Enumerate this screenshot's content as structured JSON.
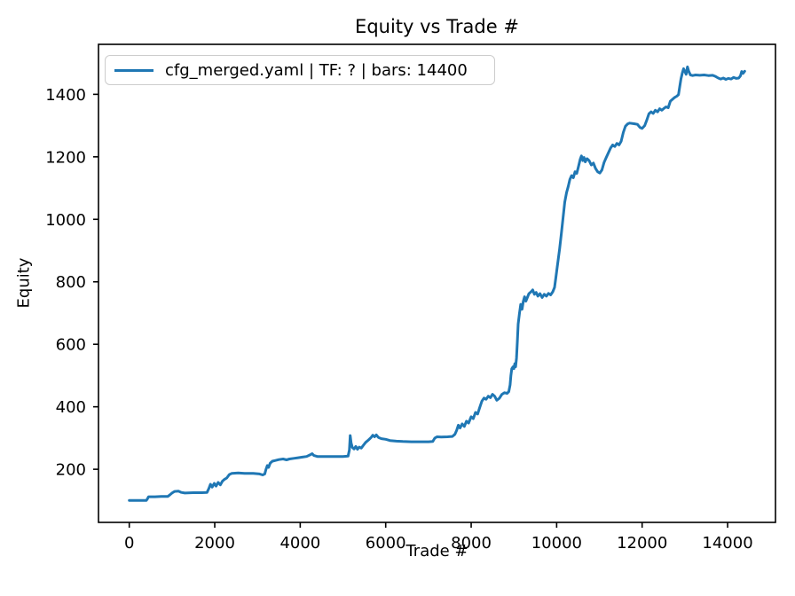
{
  "colors": {
    "line": "#1f77b4",
    "axis": "#000000",
    "legend_border": "#cccccc",
    "background": "#ffffff"
  },
  "chart_data": {
    "type": "line",
    "title": "Equity vs Trade #",
    "xlabel": "Trade #",
    "ylabel": "Equity",
    "grid": false,
    "xlim": [
      -720,
      15120
    ],
    "ylim": [
      30,
      1560
    ],
    "xticks": [
      0,
      2000,
      4000,
      6000,
      8000,
      10000,
      12000,
      14000
    ],
    "yticks": [
      200,
      400,
      600,
      800,
      1000,
      1200,
      1400
    ],
    "legend": {
      "position": "upper left",
      "entries": [
        {
          "label": "cfg_merged.yaml | TF: ? | bars: 14400",
          "color": "#1f77b4"
        }
      ]
    },
    "series": [
      {
        "name": "cfg_merged.yaml | TF: ? | bars: 14400",
        "color": "#1f77b4",
        "points": [
          [
            0,
            100
          ],
          [
            150,
            100
          ],
          [
            300,
            100
          ],
          [
            400,
            100
          ],
          [
            420,
            104
          ],
          [
            450,
            112
          ],
          [
            600,
            112
          ],
          [
            750,
            113
          ],
          [
            900,
            113
          ],
          [
            950,
            118
          ],
          [
            1000,
            124
          ],
          [
            1060,
            129
          ],
          [
            1150,
            130
          ],
          [
            1220,
            126
          ],
          [
            1300,
            124
          ],
          [
            1500,
            125
          ],
          [
            1700,
            125
          ],
          [
            1820,
            126
          ],
          [
            1860,
            138
          ],
          [
            1900,
            152
          ],
          [
            1940,
            143
          ],
          [
            1990,
            155
          ],
          [
            2030,
            146
          ],
          [
            2080,
            158
          ],
          [
            2130,
            150
          ],
          [
            2180,
            162
          ],
          [
            2230,
            168
          ],
          [
            2280,
            172
          ],
          [
            2340,
            183
          ],
          [
            2400,
            187
          ],
          [
            2550,
            188
          ],
          [
            2700,
            187
          ],
          [
            2900,
            187
          ],
          [
            3050,
            185
          ],
          [
            3120,
            182
          ],
          [
            3170,
            185
          ],
          [
            3200,
            200
          ],
          [
            3230,
            212
          ],
          [
            3260,
            206
          ],
          [
            3300,
            220
          ],
          [
            3350,
            226
          ],
          [
            3420,
            228
          ],
          [
            3500,
            231
          ],
          [
            3600,
            233
          ],
          [
            3680,
            230
          ],
          [
            3750,
            233
          ],
          [
            3850,
            235
          ],
          [
            3950,
            237
          ],
          [
            4050,
            239
          ],
          [
            4150,
            241
          ],
          [
            4230,
            246
          ],
          [
            4280,
            250
          ],
          [
            4320,
            244
          ],
          [
            4400,
            241
          ],
          [
            4600,
            241
          ],
          [
            4800,
            241
          ],
          [
            5000,
            241
          ],
          [
            5120,
            242
          ],
          [
            5150,
            262
          ],
          [
            5170,
            308
          ],
          [
            5190,
            285
          ],
          [
            5220,
            270
          ],
          [
            5260,
            265
          ],
          [
            5300,
            273
          ],
          [
            5340,
            264
          ],
          [
            5380,
            271
          ],
          [
            5430,
            268
          ],
          [
            5480,
            277
          ],
          [
            5530,
            286
          ],
          [
            5600,
            294
          ],
          [
            5660,
            302
          ],
          [
            5700,
            309
          ],
          [
            5740,
            304
          ],
          [
            5780,
            310
          ],
          [
            5830,
            302
          ],
          [
            5900,
            298
          ],
          [
            6000,
            296
          ],
          [
            6100,
            292
          ],
          [
            6250,
            290
          ],
          [
            6400,
            289
          ],
          [
            6600,
            288
          ],
          [
            6800,
            288
          ],
          [
            7000,
            288
          ],
          [
            7100,
            289
          ],
          [
            7150,
            300
          ],
          [
            7200,
            304
          ],
          [
            7300,
            303
          ],
          [
            7450,
            304
          ],
          [
            7560,
            305
          ],
          [
            7620,
            312
          ],
          [
            7660,
            325
          ],
          [
            7700,
            341
          ],
          [
            7740,
            332
          ],
          [
            7790,
            345
          ],
          [
            7840,
            337
          ],
          [
            7890,
            354
          ],
          [
            7940,
            348
          ],
          [
            8000,
            368
          ],
          [
            8050,
            362
          ],
          [
            8100,
            382
          ],
          [
            8150,
            377
          ],
          [
            8200,
            398
          ],
          [
            8250,
            418
          ],
          [
            8300,
            428
          ],
          [
            8350,
            424
          ],
          [
            8400,
            434
          ],
          [
            8450,
            429
          ],
          [
            8500,
            440
          ],
          [
            8550,
            434
          ],
          [
            8600,
            421
          ],
          [
            8660,
            427
          ],
          [
            8720,
            440
          ],
          [
            8780,
            445
          ],
          [
            8840,
            443
          ],
          [
            8880,
            448
          ],
          [
            8910,
            470
          ],
          [
            8930,
            500
          ],
          [
            8950,
            522
          ],
          [
            8980,
            528
          ],
          [
            9000,
            522
          ],
          [
            9020,
            538
          ],
          [
            9040,
            528
          ],
          [
            9060,
            555
          ],
          [
            9080,
            610
          ],
          [
            9100,
            665
          ],
          [
            9130,
            700
          ],
          [
            9160,
            728
          ],
          [
            9190,
            712
          ],
          [
            9220,
            738
          ],
          [
            9250,
            752
          ],
          [
            9280,
            738
          ],
          [
            9310,
            748
          ],
          [
            9350,
            762
          ],
          [
            9400,
            768
          ],
          [
            9440,
            774
          ],
          [
            9480,
            760
          ],
          [
            9520,
            766
          ],
          [
            9560,
            754
          ],
          [
            9610,
            762
          ],
          [
            9660,
            750
          ],
          [
            9710,
            760
          ],
          [
            9760,
            754
          ],
          [
            9810,
            763
          ],
          [
            9860,
            758
          ],
          [
            9910,
            768
          ],
          [
            9950,
            782
          ],
          [
            9980,
            812
          ],
          [
            10010,
            845
          ],
          [
            10040,
            875
          ],
          [
            10070,
            905
          ],
          [
            10110,
            955
          ],
          [
            10150,
            1005
          ],
          [
            10190,
            1055
          ],
          [
            10230,
            1085
          ],
          [
            10270,
            1105
          ],
          [
            10310,
            1128
          ],
          [
            10350,
            1140
          ],
          [
            10390,
            1133
          ],
          [
            10430,
            1152
          ],
          [
            10470,
            1147
          ],
          [
            10510,
            1168
          ],
          [
            10550,
            1192
          ],
          [
            10580,
            1203
          ],
          [
            10610,
            1188
          ],
          [
            10640,
            1198
          ],
          [
            10670,
            1184
          ],
          [
            10710,
            1194
          ],
          [
            10760,
            1188
          ],
          [
            10810,
            1174
          ],
          [
            10860,
            1180
          ],
          [
            10910,
            1163
          ],
          [
            10960,
            1152
          ],
          [
            11010,
            1148
          ],
          [
            11060,
            1158
          ],
          [
            11110,
            1182
          ],
          [
            11160,
            1198
          ],
          [
            11210,
            1213
          ],
          [
            11260,
            1228
          ],
          [
            11310,
            1238
          ],
          [
            11360,
            1233
          ],
          [
            11410,
            1243
          ],
          [
            11460,
            1238
          ],
          [
            11510,
            1250
          ],
          [
            11560,
            1278
          ],
          [
            11610,
            1298
          ],
          [
            11660,
            1305
          ],
          [
            11710,
            1308
          ],
          [
            11810,
            1306
          ],
          [
            11890,
            1304
          ],
          [
            11950,
            1294
          ],
          [
            12000,
            1291
          ],
          [
            12060,
            1300
          ],
          [
            12110,
            1318
          ],
          [
            12160,
            1338
          ],
          [
            12210,
            1344
          ],
          [
            12260,
            1339
          ],
          [
            12310,
            1349
          ],
          [
            12360,
            1344
          ],
          [
            12410,
            1354
          ],
          [
            12460,
            1349
          ],
          [
            12510,
            1355
          ],
          [
            12560,
            1360
          ],
          [
            12610,
            1357
          ],
          [
            12660,
            1378
          ],
          [
            12710,
            1384
          ],
          [
            12760,
            1390
          ],
          [
            12810,
            1394
          ],
          [
            12850,
            1399
          ],
          [
            12880,
            1425
          ],
          [
            12910,
            1450
          ],
          [
            12940,
            1468
          ],
          [
            12970,
            1482
          ],
          [
            13000,
            1473
          ],
          [
            13030,
            1464
          ],
          [
            13060,
            1488
          ],
          [
            13090,
            1474
          ],
          [
            13130,
            1462
          ],
          [
            13180,
            1460
          ],
          [
            13250,
            1462
          ],
          [
            13350,
            1461
          ],
          [
            13450,
            1462
          ],
          [
            13550,
            1460
          ],
          [
            13650,
            1461
          ],
          [
            13720,
            1457
          ],
          [
            13780,
            1452
          ],
          [
            13840,
            1449
          ],
          [
            13900,
            1452
          ],
          [
            13960,
            1448
          ],
          [
            14020,
            1451
          ],
          [
            14080,
            1449
          ],
          [
            14140,
            1454
          ],
          [
            14200,
            1451
          ],
          [
            14260,
            1452
          ],
          [
            14300,
            1459
          ],
          [
            14330,
            1473
          ],
          [
            14360,
            1467
          ],
          [
            14400,
            1474
          ]
        ]
      }
    ]
  }
}
